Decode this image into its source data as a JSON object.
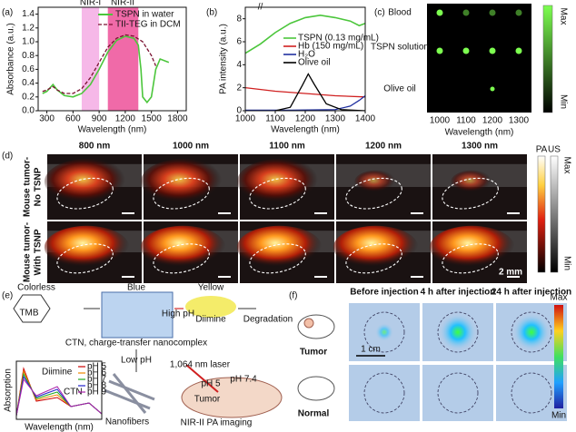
{
  "panels": {
    "a": {
      "label": "(a)",
      "regions": [
        "NIR-I",
        "NIR-II"
      ],
      "legend": [
        "TSPN in water",
        "TII-TEG in DCM"
      ],
      "y_label": "Absorbance (a.u.)",
      "x_label": "Wavelength (nm)",
      "yticks": [
        "0.0",
        "0.2",
        "0.4",
        "0.6",
        "0.8",
        "1.0",
        "1.2",
        "1.4"
      ],
      "xticks": [
        "300",
        "600",
        "900",
        "1200",
        "1500",
        "1800"
      ]
    },
    "b": {
      "label": "(b)",
      "legend": [
        "TSPN (0.13 mg/mL)",
        "Hb (150 mg/mL)",
        "H₂O",
        "Olive oil"
      ],
      "y_label": "PA intensity (a.u.)",
      "x_label": "Wavelength (nm)",
      "yticks": [
        "0",
        "2",
        "4",
        "6",
        "8"
      ],
      "xticks": [
        "1000",
        "1100",
        "1200",
        "1300",
        "1400"
      ]
    },
    "c": {
      "label": "(c)",
      "rows": [
        "Blood",
        "TSPN solution",
        "Olive oil"
      ],
      "colorbar": [
        "Max",
        "Min"
      ],
      "xticks": [
        "1000",
        "1100",
        "1200",
        "1300"
      ],
      "x_label": "Wavelength (nm)"
    },
    "d": {
      "label": "(d)",
      "columns": [
        "800 nm",
        "1000 nm",
        "1100 nm",
        "1200 nm",
        "1300 nm"
      ],
      "rows": [
        [
          "Mouse tumor-",
          "No TSNP"
        ],
        [
          "Mouse tumor-",
          "With TSNP"
        ]
      ],
      "scale": "2 mm",
      "colorbar": [
        "PA",
        "US"
      ],
      "colorbar_range": [
        "Max",
        "Min"
      ]
    },
    "e": {
      "label": "(e)",
      "texts": [
        "Colorless",
        "TMB",
        "Blue",
        "Yellow",
        "High pH",
        "Diimine",
        "Degradation",
        "CTN, charge-transfer nanocomplex",
        "Low pH",
        "Nanofibers",
        "1,064 nm laser",
        "pH 7.4",
        "pH 5",
        "Tumor",
        "NIR-II PA imaging"
      ],
      "inset": {
        "y_label": "Absorption",
        "x_label": "Wavelength (nm)",
        "annotations": [
          "Diimine",
          "CTN"
        ],
        "legend": [
          "pH 5",
          "pH 6",
          "pH 7",
          "pH 8",
          "pH 9"
        ]
      }
    },
    "f": {
      "label": "(f)",
      "columns": [
        "Before injection",
        "4 h after injection",
        "24 h after injection"
      ],
      "rows": [
        "Tumor",
        "Normal"
      ],
      "scale": "1 cm",
      "colorbar": [
        "Max",
        "Min"
      ]
    }
  }
}
